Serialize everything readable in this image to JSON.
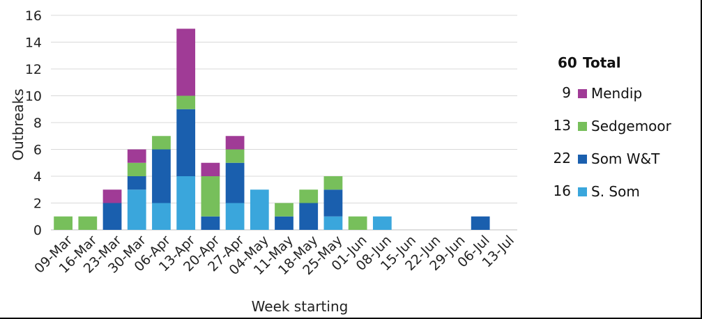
{
  "chart_data": {
    "type": "bar",
    "stacked": true,
    "xlabel": "Week starting",
    "ylabel": "Outbreaks",
    "ylim": [
      0,
      16
    ],
    "yticks": [
      0,
      2,
      4,
      6,
      8,
      10,
      12,
      14,
      16
    ],
    "grid": true,
    "legend_position": "right",
    "categories": [
      "09-Mar",
      "16-Mar",
      "23-Mar",
      "30-Mar",
      "06-Apr",
      "13-Apr",
      "20-Apr",
      "27-Apr",
      "04-May",
      "11-May",
      "18-May",
      "25-May",
      "01-Jun",
      "08-Jun",
      "15-Jun",
      "22-Jun",
      "29-Jun",
      "06-Jul",
      "13-Jul"
    ],
    "series": [
      {
        "name": "S. Som",
        "color": "#3aa6dc",
        "values": [
          0,
          0,
          0,
          3,
          2,
          4,
          0,
          2,
          3,
          0,
          0,
          1,
          0,
          1,
          0,
          0,
          0,
          0,
          0
        ]
      },
      {
        "name": "Som W&T",
        "color": "#1a5fae",
        "values": [
          0,
          0,
          2,
          1,
          4,
          5,
          1,
          3,
          0,
          1,
          2,
          2,
          0,
          0,
          0,
          0,
          0,
          1,
          0
        ]
      },
      {
        "name": "Sedgemoor",
        "color": "#77bf5b",
        "values": [
          1,
          1,
          0,
          1,
          1,
          1,
          3,
          1,
          0,
          1,
          1,
          1,
          1,
          0,
          0,
          0,
          0,
          0,
          0
        ]
      },
      {
        "name": "Mendip",
        "color": "#a03b96",
        "values": [
          0,
          0,
          1,
          1,
          0,
          5,
          1,
          1,
          0,
          0,
          0,
          0,
          0,
          0,
          0,
          0,
          0,
          0,
          0
        ]
      }
    ],
    "legend": {
      "total_count": "60",
      "total_label": "Total",
      "entries": [
        {
          "count": "9",
          "label": "Mendip",
          "color": "#a03b96"
        },
        {
          "count": "13",
          "label": "Sedgemoor",
          "color": "#77bf5b"
        },
        {
          "count": "22",
          "label": "Som W&T",
          "color": "#1a5fae"
        },
        {
          "count": "16",
          "label": "S. Som",
          "color": "#3aa6dc"
        }
      ]
    }
  }
}
